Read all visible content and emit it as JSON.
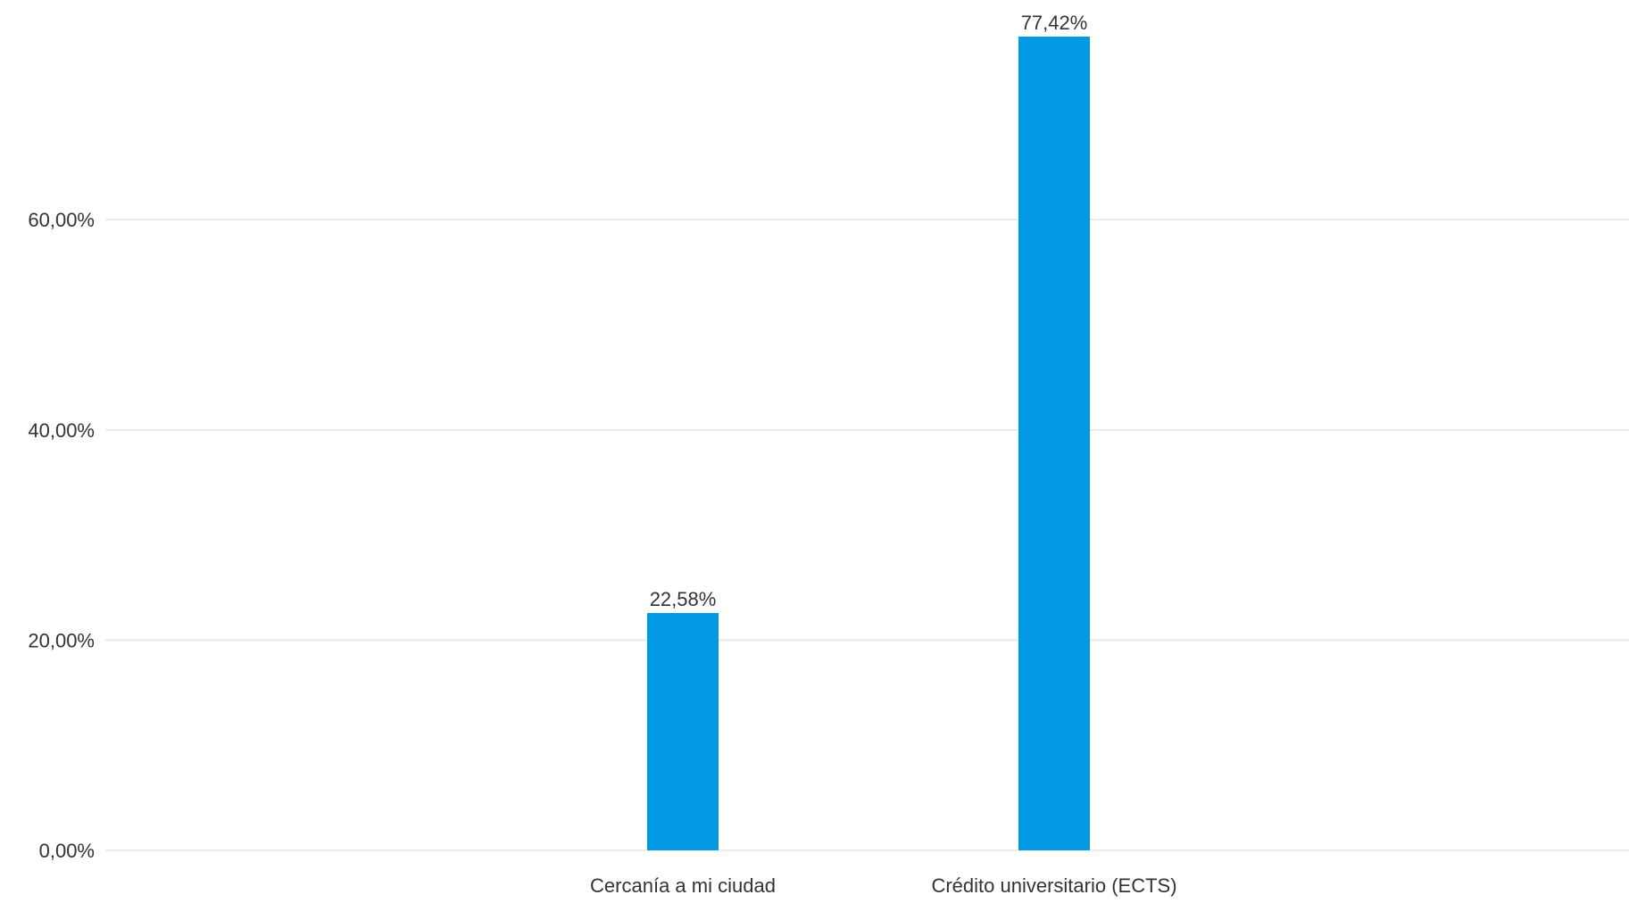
{
  "chart_data": {
    "type": "bar",
    "title": "",
    "xlabel": "",
    "ylabel": "",
    "categories": [
      "Cercanía a mi ciudad",
      "Crédito universitario (ECTS)"
    ],
    "values": [
      22.58,
      77.42
    ],
    "value_labels": [
      "22,58%",
      "77,42%"
    ],
    "ylim": [
      0,
      80
    ],
    "yticks": [
      0,
      20,
      40,
      60
    ],
    "ytick_labels": [
      "0,00%",
      "20,00%",
      "40,00%",
      "60,00%"
    ],
    "grid": true,
    "legend": "none",
    "bar_color": "#0399e3",
    "grid_color": "#e6e6e6",
    "text_color": "#333333"
  }
}
